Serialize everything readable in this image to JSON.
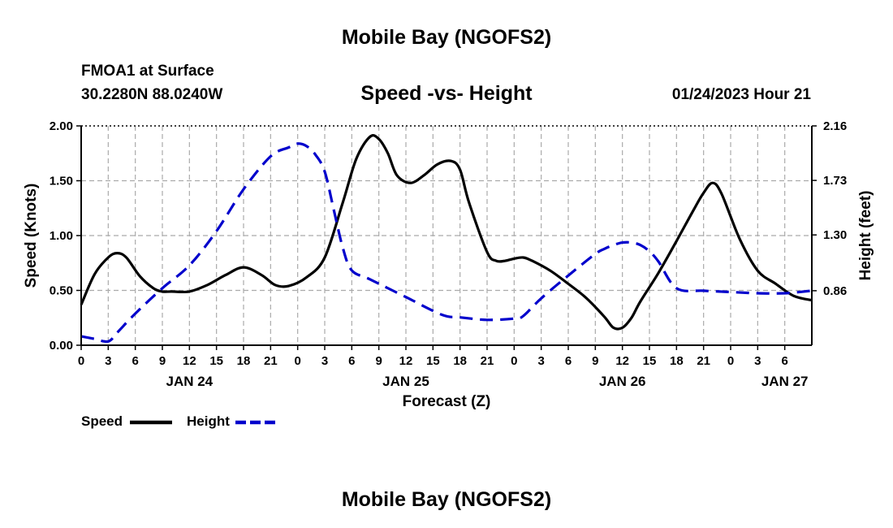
{
  "header": {
    "title": "Mobile Bay (NGOFS2)",
    "station": "FMOA1 at Surface",
    "location": "30.2280N  88.0240W",
    "chart_title": "Speed -vs- Height",
    "timestamp": "01/24/2023 Hour 21",
    "bottom_title": "Mobile Bay (NGOFS2)"
  },
  "legend": {
    "speed_label": "Speed",
    "height_label": "Height"
  },
  "colors": {
    "speed": "#000000",
    "height": "#0000cc",
    "grid": "#aaaaaa"
  },
  "chart_data": {
    "type": "line",
    "title": "Speed -vs- Height",
    "xlabel": "Forecast (Z)",
    "ylabel": "Speed (Knots)",
    "y2label": "Height (feet)",
    "x_range_hours": [
      0,
      81
    ],
    "ylim": [
      0,
      2.0
    ],
    "y2lim": [
      0.43,
      2.16
    ],
    "y_ticks": [
      0.0,
      0.5,
      1.0,
      1.5,
      2.0
    ],
    "y_tick_labels": [
      "0.00",
      "0.50",
      "1.00",
      "1.50",
      "2.00"
    ],
    "y2_ticks": [
      0.86,
      1.3,
      1.73,
      2.16
    ],
    "y2_tick_labels": [
      "0.86",
      "1.30",
      "1.73",
      "2.16"
    ],
    "x_tick_labels": [
      "0",
      "3",
      "6",
      "9",
      "12",
      "15",
      "18",
      "21",
      "0",
      "3",
      "6",
      "9",
      "12",
      "15",
      "18",
      "21",
      "0",
      "3",
      "6",
      "9",
      "12",
      "15",
      "18",
      "21",
      "0",
      "3",
      "6"
    ],
    "date_labels": [
      {
        "label": "JAN 24",
        "hour": 12
      },
      {
        "label": "JAN 25",
        "hour": 36
      },
      {
        "label": "JAN 26",
        "hour": 60
      },
      {
        "label": "JAN 27",
        "hour": 78
      }
    ],
    "series": [
      {
        "name": "Speed",
        "axis": "left",
        "style": "solid",
        "x": [
          0,
          1.5,
          3,
          4,
          5,
          6.5,
          8,
          9,
          10,
          12,
          14,
          16,
          18,
          20,
          21.5,
          23,
          25,
          27,
          29,
          30.5,
          32,
          33,
          34,
          35,
          36.5,
          38,
          39.5,
          41,
          42,
          43,
          45,
          46,
          47,
          48,
          49,
          50,
          52,
          54,
          56,
          58,
          59,
          60,
          61,
          62,
          64,
          66,
          68,
          69,
          70,
          71,
          73,
          75,
          77,
          79,
          81
        ],
        "y": [
          0.37,
          0.65,
          0.8,
          0.84,
          0.8,
          0.63,
          0.52,
          0.49,
          0.49,
          0.49,
          0.55,
          0.64,
          0.71,
          0.64,
          0.55,
          0.54,
          0.62,
          0.8,
          1.3,
          1.7,
          1.9,
          1.88,
          1.75,
          1.55,
          1.48,
          1.55,
          1.65,
          1.68,
          1.6,
          1.3,
          0.85,
          0.77,
          0.77,
          0.79,
          0.8,
          0.77,
          0.68,
          0.56,
          0.43,
          0.26,
          0.16,
          0.16,
          0.25,
          0.4,
          0.66,
          0.95,
          1.25,
          1.39,
          1.48,
          1.38,
          0.97,
          0.68,
          0.56,
          0.45,
          0.41
        ]
      },
      {
        "name": "Height",
        "axis": "right",
        "style": "dashed",
        "x": [
          0,
          1.5,
          3,
          4,
          6,
          9,
          12,
          15,
          18,
          21,
          23,
          24,
          25,
          26,
          27,
          28,
          29,
          30,
          32,
          36,
          40,
          42,
          45,
          48,
          49,
          51,
          54,
          57,
          58,
          59,
          60,
          61,
          62,
          63,
          64,
          66,
          69,
          72,
          75,
          78,
          81
        ],
        "y": [
          0.5,
          0.48,
          0.46,
          0.53,
          0.68,
          0.88,
          1.06,
          1.33,
          1.66,
          1.92,
          1.99,
          2.02,
          2.0,
          1.93,
          1.8,
          1.5,
          1.2,
          1.02,
          0.95,
          0.81,
          0.67,
          0.65,
          0.63,
          0.64,
          0.66,
          0.8,
          0.98,
          1.15,
          1.19,
          1.22,
          1.24,
          1.24,
          1.22,
          1.17,
          1.09,
          0.88,
          0.86,
          0.85,
          0.84,
          0.84,
          0.86
        ]
      }
    ]
  }
}
